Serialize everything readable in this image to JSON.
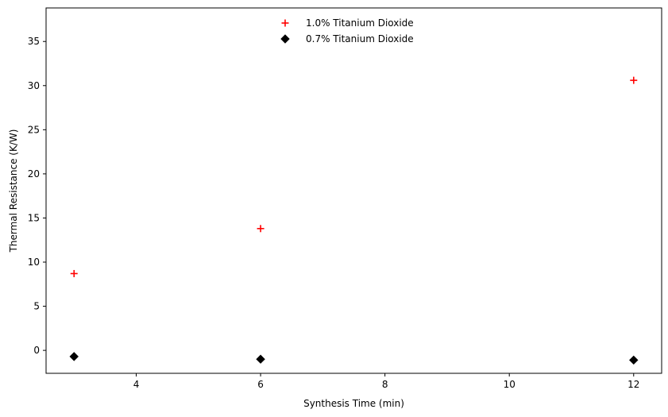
{
  "chart_data": {
    "type": "scatter",
    "title": "",
    "xlabel": "Synthesis Time (min)",
    "ylabel": "Thermal Resistance (K/W)",
    "xlim": [
      2.55,
      12.45
    ],
    "ylim": [
      -2.6,
      38.8
    ],
    "xticks": [
      4,
      6,
      8,
      10,
      12
    ],
    "yticks": [
      0,
      5,
      10,
      15,
      20,
      25,
      30,
      35
    ],
    "grid": false,
    "legend_position": "upper center",
    "series": [
      {
        "name": "1.0% Titanium Dioxide",
        "marker": "plus",
        "color": "#ff0000",
        "x": [
          3,
          6,
          12
        ],
        "y": [
          8.7,
          13.8,
          30.6
        ]
      },
      {
        "name": "0.7% Titanium Dioxide",
        "marker": "diamond",
        "color": "#000000",
        "x": [
          3,
          6,
          12
        ],
        "y": [
          -0.7,
          -1.0,
          -1.1
        ]
      }
    ]
  }
}
